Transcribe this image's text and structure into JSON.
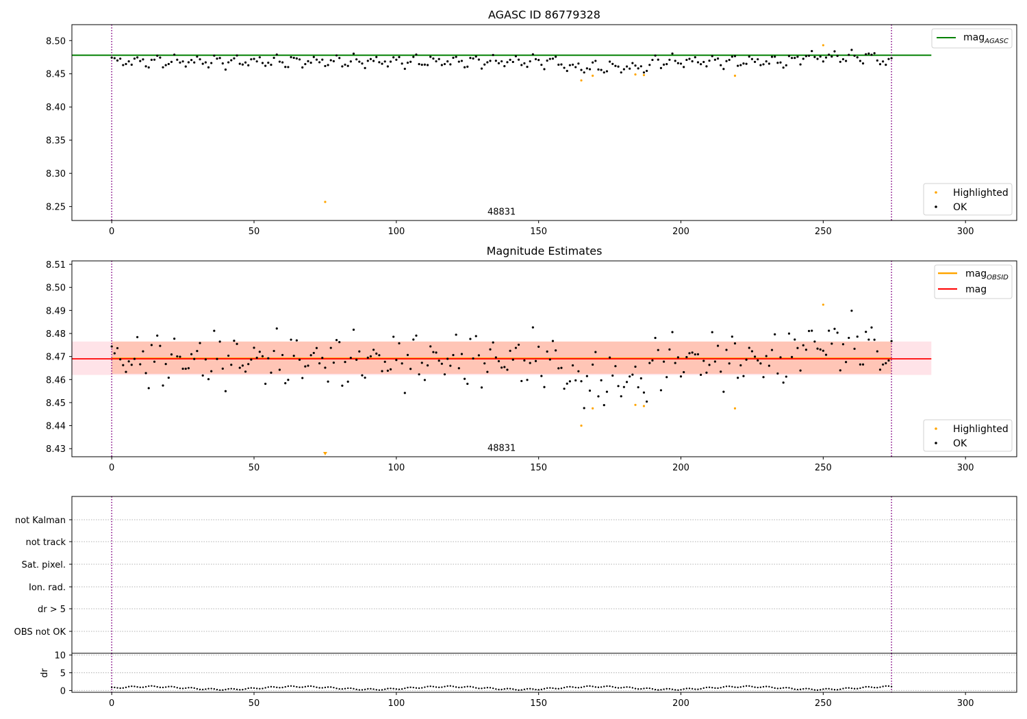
{
  "chart_data": [
    {
      "type": "scatter",
      "title": "AGASC ID 86779328",
      "xlim": [
        -14,
        318
      ],
      "ylim": [
        8.229,
        8.524
      ],
      "xticks": [
        0,
        50,
        100,
        150,
        200,
        250,
        300
      ],
      "xtick_labels": [
        "0",
        "50",
        "100",
        "150",
        "200",
        "250",
        "300"
      ],
      "yticks": [
        8.25,
        8.3,
        8.35,
        8.4,
        8.45,
        8.5
      ],
      "ytick_labels": [
        "8.25",
        "8.30",
        "8.35",
        "8.40",
        "8.45",
        "8.50"
      ],
      "vlines": [
        0,
        274
      ],
      "obsid_label": {
        "x": 137,
        "y": 8.238,
        "text": "48831"
      },
      "hline": {
        "y": 8.478,
        "x_range": [
          -14,
          288
        ],
        "color": "#008000",
        "name": "mag_AGASC"
      },
      "legend_upper": [
        {
          "label": "mag",
          "sub": "AGASC",
          "color": "#008000",
          "kind": "line"
        }
      ],
      "legend_lower": [
        {
          "label": "Highlighted",
          "color": "#ffa500",
          "kind": "dot"
        },
        {
          "label": "OK",
          "color": "#000000",
          "kind": "dot"
        }
      ],
      "series": [
        {
          "name": "Highlighted",
          "color": "#ffa500",
          "points": [
            [
              75,
              8.257
            ],
            [
              165,
              8.44
            ],
            [
              169,
              8.447
            ],
            [
              184,
              8.449
            ],
            [
              187,
              8.448
            ],
            [
              219,
              8.447
            ],
            [
              250,
              8.493
            ]
          ]
        }
      ]
    },
    {
      "type": "scatter",
      "title": "Magnitude Estimates",
      "xlim": [
        -14,
        318
      ],
      "ylim": [
        8.4265,
        8.5115
      ],
      "xticks": [
        0,
        50,
        100,
        150,
        200,
        250,
        300
      ],
      "xtick_labels": [
        "0",
        "50",
        "100",
        "150",
        "200",
        "250",
        "300"
      ],
      "yticks": [
        8.43,
        8.44,
        8.45,
        8.46,
        8.47,
        8.48,
        8.49,
        8.5,
        8.51
      ],
      "ytick_labels": [
        "8.43",
        "8.44",
        "8.45",
        "8.46",
        "8.47",
        "8.48",
        "8.49",
        "8.50",
        "8.51"
      ],
      "vlines": [
        0,
        274
      ],
      "obsid_label": {
        "x": 137,
        "y": 8.429,
        "text": "48831"
      },
      "mag_line": {
        "y": 8.469,
        "x_range": [
          -14,
          288
        ],
        "color": "#ff0000",
        "band": [
          8.462,
          8.4765
        ],
        "band_color": "#ffc0cb"
      },
      "mag_obsid_line": {
        "y": 8.4692,
        "x_range": [
          0,
          274
        ],
        "color": "#ffa500",
        "band": [
          8.4625,
          8.4765
        ],
        "band_color": "#ffa07a"
      },
      "legend_upper": [
        {
          "label": "mag",
          "sub": "OBSID",
          "color": "#ffa500",
          "kind": "line"
        },
        {
          "label": "mag",
          "sub": "",
          "color": "#ff0000",
          "kind": "line"
        }
      ],
      "legend_lower": [
        {
          "label": "Highlighted",
          "color": "#ffa500",
          "kind": "dot"
        },
        {
          "label": "OK",
          "color": "#000000",
          "kind": "dot"
        }
      ],
      "series": [
        {
          "name": "Highlighted",
          "color": "#ffa500",
          "points": [
            [
              165,
              8.44
            ],
            [
              169,
              8.4475
            ],
            [
              184,
              8.449
            ],
            [
              187,
              8.4485
            ],
            [
              219,
              8.4475
            ],
            [
              250,
              8.4925
            ]
          ]
        }
      ],
      "offscale_markers": [
        {
          "x": 75,
          "y": 8.427
        }
      ]
    },
    {
      "type": "table",
      "flag_labels": [
        "not Kalman",
        "not track",
        "Sat. pixel.",
        "Ion. rad.",
        "dr > 5",
        "OBS not OK"
      ],
      "vlines": [
        0,
        274
      ]
    },
    {
      "type": "scatter",
      "xlim": [
        -14,
        318
      ],
      "ylim": [
        -0.5,
        10.5
      ],
      "ylabel": "dr",
      "xticks": [
        0,
        50,
        100,
        150,
        200,
        250,
        300
      ],
      "xtick_labels": [
        "0",
        "50",
        "100",
        "150",
        "200",
        "250",
        "300"
      ],
      "yticks": [
        0,
        5,
        10
      ],
      "ytick_labels": [
        "0",
        "5",
        "10"
      ],
      "vlines": [
        0,
        274
      ]
    }
  ]
}
